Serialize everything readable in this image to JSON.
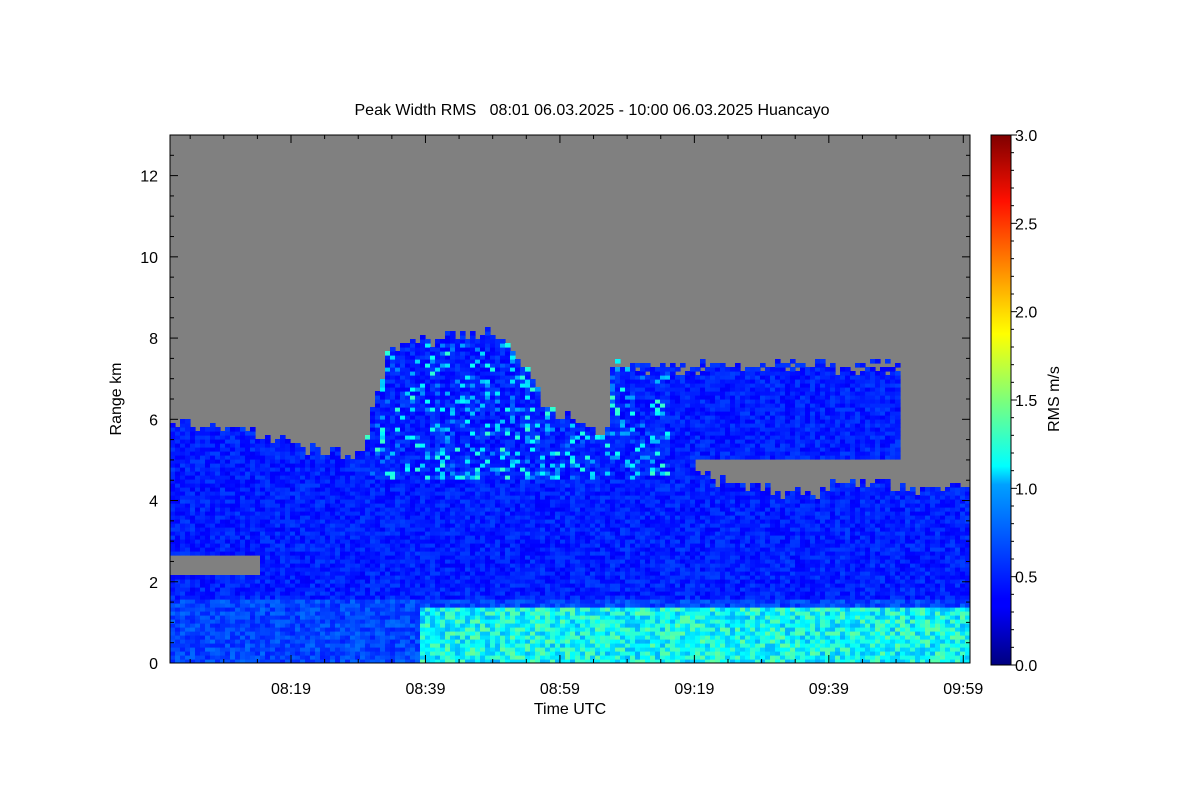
{
  "chart_data": {
    "type": "heatmap",
    "title": "Peak Width RMS   08:01 06.03.2025 - 10:00 06.03.2025 Huancayo",
    "xlabel": "Time UTC",
    "ylabel": "Range km",
    "x_ticks": [
      "08:19",
      "08:39",
      "08:59",
      "09:19",
      "09:39",
      "09:59"
    ],
    "x_tick_minutes": [
      499,
      519,
      539,
      559,
      579,
      599
    ],
    "xlim_minutes": [
      481,
      600
    ],
    "y_ticks": [
      0,
      2,
      4,
      6,
      8,
      10,
      12
    ],
    "ylim": [
      0,
      13
    ],
    "colorbar": {
      "label": "RMS m/s",
      "range": [
        0.0,
        3.0
      ],
      "ticks": [
        "0.0",
        "0.5",
        "1.0",
        "1.5",
        "2.0",
        "2.5",
        "3.0"
      ],
      "colormap": "jet"
    },
    "no_data_color": "#808080",
    "field": {
      "time_minutes": [
        481,
        485,
        489,
        493,
        497,
        501,
        505,
        509,
        513,
        517,
        521,
        525,
        529,
        533,
        537,
        541,
        545,
        549,
        553,
        557,
        561,
        565,
        569,
        573,
        577,
        581,
        585,
        589,
        593,
        597,
        600
      ],
      "echo_top_km": [
        5.9,
        5.9,
        5.8,
        5.6,
        5.5,
        5.3,
        5.2,
        5.1,
        7.6,
        7.9,
        8.0,
        8.1,
        8.2,
        7.4,
        6.2,
        5.9,
        5.7,
        5.5,
        5.4,
        5.2,
        4.6,
        4.3,
        4.3,
        4.2,
        4.2,
        4.6,
        4.4,
        4.3,
        4.3,
        4.3,
        4.3
      ],
      "upper_layer": {
        "start_min": 546,
        "end_min": 589,
        "base_km": 5.0,
        "top_km": 7.3
      },
      "gap_layer": {
        "start_min": 481,
        "end_min": 494,
        "base_km": 2.2,
        "top_km": 2.7
      },
      "low_band_top_km": 1.4,
      "low_band_rms": 1.1,
      "low_band_start_min": 518,
      "cloud_rms": 0.35,
      "cloud_max_rms": 1.3
    }
  }
}
